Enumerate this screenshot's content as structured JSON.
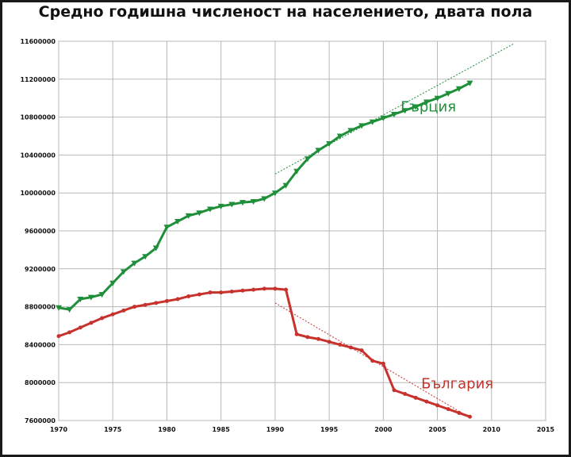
{
  "chart_data": {
    "type": "line",
    "title": "Средно годишна численост на населението, двата пола",
    "xlabel": "",
    "ylabel": "",
    "xlim": [
      1970,
      2015
    ],
    "ylim": [
      7600000,
      11600000
    ],
    "x_ticks": [
      1970,
      1975,
      1980,
      1985,
      1990,
      1995,
      2000,
      2005,
      2010,
      2015
    ],
    "y_ticks": [
      7600000,
      8000000,
      8400000,
      8800000,
      9200000,
      9600000,
      10000000,
      10400000,
      10800000,
      11200000,
      11600000
    ],
    "grid": true,
    "legend": "none",
    "series": [
      {
        "name": "Гърция",
        "color": "#1f8f3a",
        "marker": "triangle-down",
        "x": [
          1970,
          1971,
          1972,
          1973,
          1974,
          1975,
          1976,
          1977,
          1978,
          1979,
          1980,
          1981,
          1982,
          1983,
          1984,
          1985,
          1986,
          1987,
          1988,
          1989,
          1990,
          1991,
          1992,
          1993,
          1994,
          1995,
          1996,
          1997,
          1998,
          1999,
          2000,
          2001,
          2002,
          2003,
          2004,
          2005,
          2006,
          2007,
          2008
        ],
        "values": [
          8790000,
          8770000,
          8880000,
          8900000,
          8930000,
          9050000,
          9170000,
          9260000,
          9330000,
          9420000,
          9640000,
          9700000,
          9760000,
          9790000,
          9830000,
          9860000,
          9880000,
          9900000,
          9910000,
          9940000,
          10000000,
          10080000,
          10230000,
          10360000,
          10450000,
          10520000,
          10600000,
          10660000,
          10710000,
          10750000,
          10790000,
          10830000,
          10870000,
          10910000,
          10960000,
          11000000,
          11050000,
          11100000,
          11160000
        ],
        "trend": {
          "x": [
            1990,
            2012
          ],
          "values": [
            10200000,
            11570000
          ],
          "style": "dotted"
        }
      },
      {
        "name": "България",
        "color": "#c8322d",
        "marker": "dot",
        "x": [
          1970,
          1971,
          1972,
          1973,
          1974,
          1975,
          1976,
          1977,
          1978,
          1979,
          1980,
          1981,
          1982,
          1983,
          1984,
          1985,
          1986,
          1987,
          1988,
          1989,
          1990,
          1991,
          1992,
          1993,
          1994,
          1995,
          1996,
          1997,
          1998,
          1999,
          2000,
          2001,
          2002,
          2003,
          2004,
          2005,
          2006,
          2007,
          2008
        ],
        "values": [
          8490000,
          8530000,
          8580000,
          8630000,
          8680000,
          8720000,
          8760000,
          8800000,
          8820000,
          8840000,
          8860000,
          8880000,
          8910000,
          8930000,
          8950000,
          8950000,
          8960000,
          8970000,
          8980000,
          8990000,
          8990000,
          8980000,
          8510000,
          8480000,
          8460000,
          8430000,
          8400000,
          8370000,
          8340000,
          8230000,
          8200000,
          7920000,
          7880000,
          7840000,
          7800000,
          7760000,
          7720000,
          7680000,
          7640000
        ],
        "trend": {
          "x": [
            1990,
            2008
          ],
          "values": [
            8840000,
            7630000
          ],
          "style": "dotted"
        }
      }
    ]
  }
}
